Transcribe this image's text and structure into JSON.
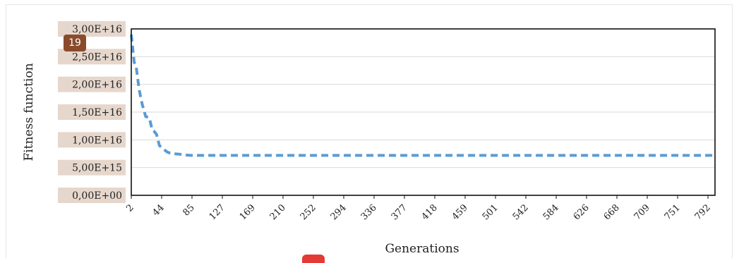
{
  "badge": {
    "label": "19"
  },
  "chart_data": {
    "type": "line",
    "title": "",
    "xlabel": "Generations",
    "ylabel": "Fitness function",
    "ylim": [
      0,
      3e+16
    ],
    "yticks": [
      "0,00E+00",
      "5,00E+15",
      "1,00E+16",
      "1,50E+16",
      "2,00E+16",
      "2,50E+16",
      "3,00E+16"
    ],
    "ytick_values": [
      0,
      5000000000000000.0,
      1e+16,
      1.5e+16,
      2e+16,
      2.5e+16,
      3e+16
    ],
    "xlim": [
      2,
      813
    ],
    "xticks": [
      "2",
      "44",
      "85",
      "127",
      "169",
      "210",
      "252",
      "294",
      "336",
      "377",
      "418",
      "459",
      "501",
      "542",
      "584",
      "626",
      "668",
      "709",
      "751",
      "792"
    ],
    "grid": "horizontal",
    "legend": "none",
    "line_color": "#5b9bd5",
    "line_style": "dashed",
    "series": [
      {
        "x": [
          2,
          6,
          9,
          13,
          17,
          22,
          27,
          31,
          34,
          37,
          41,
          44,
          48,
          52,
          56,
          60,
          65,
          70,
          75,
          80,
          85,
          100,
          127,
          200,
          300,
          400,
          500,
          600,
          700,
          800,
          813
        ],
        "values": [
          2.9e+16,
          2.4e+16,
          2.3e+16,
          1.9e+16,
          1.65e+16,
          1.42e+16,
          1.4e+16,
          1.18e+16,
          1.15e+16,
          1.1e+16,
          9000000000000000.0,
          8600000000000000.0,
          8200000000000000.0,
          7800000000000000.0,
          7600000000000000.0,
          7500000000000000.0,
          7450000000000000.0,
          7400000000000000.0,
          7300000000000000.0,
          7250000000000000.0,
          7200000000000000.0,
          7200000000000000.0,
          7200000000000000.0,
          7200000000000000.0,
          7200000000000000.0,
          7200000000000000.0,
          7200000000000000.0,
          7200000000000000.0,
          7200000000000000.0,
          7200000000000000.0,
          7200000000000000.0
        ]
      }
    ]
  }
}
